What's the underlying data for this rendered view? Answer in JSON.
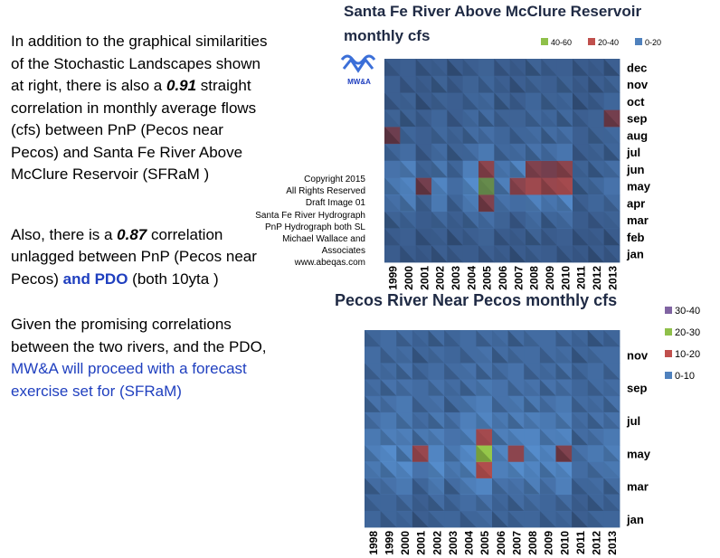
{
  "text_panel": {
    "p1": [
      "In addition to the graphical similarities of the Stochastic Landscapes shown at right, there is also a ",
      "0.91",
      " straight correlation in monthly average flows (cfs) between PnP (Pecos near Pecos) and Santa Fe River Above McClure Reservoir (SFRaM )"
    ],
    "p2": [
      "Also, there is a ",
      "0.87",
      " correlation unlagged between PnP (Pecos near Pecos) ",
      "and PDO",
      " (both 10yta )"
    ],
    "p3": [
      "Given the promising correlations between the two rivers, and the PDO, ",
      "MW&A will proceed with a forecast exercise set for (SFRaM)"
    ]
  },
  "copyright": [
    "Copyright  2015",
    "All Rights Reserved",
    "Draft Image 01",
    "Santa Fe River Hydrograph",
    "PnP Hydrograph both SL",
    "Michael Wallace and",
    "Associates",
    "www.abeqas.com"
  ],
  "logo": "MW&A",
  "chart_data": [
    {
      "type": "surface",
      "title": [
        "Santa Fe River Above McClure Reservoir",
        "monthly cfs"
      ],
      "x": [
        "1999",
        "2000",
        "2001",
        "2002",
        "2003",
        "2004",
        "2005",
        "2006",
        "2007",
        "2008",
        "2009",
        "2010",
        "2011",
        "2012",
        "2013"
      ],
      "y": [
        "jan",
        "feb",
        "mar",
        "apr",
        "may",
        "jun",
        "jul",
        "aug",
        "sep",
        "oct",
        "nov",
        "dec"
      ],
      "legend": "top-right-horizontal",
      "bands": [
        {
          "name": "40-60",
          "range": [
            40,
            60
          ],
          "color": "#8fc04a"
        },
        {
          "name": "20-40",
          "range": [
            20,
            40
          ],
          "color": "#c0504d"
        },
        {
          "name": "0-20",
          "range": [
            0,
            20
          ],
          "color": "#4f81bd"
        }
      ],
      "values": [
        [
          3,
          3,
          2,
          4,
          3,
          3,
          4,
          3,
          3,
          4,
          3,
          3,
          2,
          3,
          3
        ],
        [
          3,
          4,
          2,
          4,
          3,
          4,
          5,
          3,
          3,
          5,
          3,
          4,
          2,
          3,
          3
        ],
        [
          5,
          6,
          3,
          7,
          4,
          8,
          9,
          5,
          4,
          8,
          6,
          9,
          3,
          4,
          5
        ],
        [
          9,
          14,
          5,
          12,
          6,
          13,
          24,
          10,
          8,
          15,
          11,
          17,
          4,
          6,
          8
        ],
        [
          12,
          16,
          22,
          16,
          8,
          18,
          45,
          14,
          26,
          29,
          28,
          30,
          5,
          7,
          10
        ],
        [
          10,
          15,
          5,
          12,
          6,
          14,
          26,
          11,
          16,
          24,
          22,
          26,
          5,
          6,
          9
        ],
        [
          6,
          8,
          4,
          8,
          5,
          9,
          12,
          7,
          8,
          10,
          9,
          11,
          4,
          5,
          6
        ],
        [
          21,
          6,
          4,
          7,
          5,
          8,
          9,
          6,
          6,
          8,
          8,
          9,
          4,
          5,
          7
        ],
        [
          5,
          5,
          4,
          6,
          4,
          7,
          8,
          5,
          5,
          7,
          6,
          7,
          4,
          5,
          22
        ],
        [
          4,
          5,
          3,
          5,
          4,
          6,
          7,
          5,
          4,
          6,
          5,
          6,
          3,
          4,
          6
        ],
        [
          4,
          4,
          3,
          5,
          3,
          5,
          6,
          4,
          4,
          5,
          4,
          5,
          3,
          4,
          5
        ],
        [
          3,
          4,
          3,
          4,
          3,
          4,
          5,
          4,
          3,
          5,
          4,
          4,
          3,
          3,
          4
        ]
      ]
    },
    {
      "type": "surface",
      "title": [
        "Pecos River Near Pecos monthly cfs"
      ],
      "x": [
        "1998",
        "1999",
        "2000",
        "2001",
        "2002",
        "2003",
        "2004",
        "2005",
        "2006",
        "2007",
        "2008",
        "2009",
        "2010",
        "2011",
        "2012",
        "2013"
      ],
      "y": [
        "jan",
        null,
        "mar",
        null,
        "may",
        null,
        "jul",
        null,
        "sep",
        null,
        "nov",
        null
      ],
      "legend": "right-vertical",
      "bands": [
        {
          "name": "30-40",
          "range": [
            30,
            40
          ],
          "color": "#8064a2"
        },
        {
          "name": "20-30",
          "range": [
            20,
            30
          ],
          "color": "#8fc04a"
        },
        {
          "name": "10-20",
          "range": [
            10,
            20
          ],
          "color": "#c0504d"
        },
        {
          "name": "0-10",
          "range": [
            0,
            10
          ],
          "color": "#4f81bd"
        }
      ],
      "values": [
        [
          3,
          3,
          3,
          2,
          3,
          3,
          3,
          4,
          3,
          3,
          3,
          3,
          3,
          2,
          3,
          3
        ],
        [
          3,
          3,
          4,
          2,
          4,
          3,
          4,
          5,
          3,
          4,
          4,
          3,
          4,
          2,
          3,
          3
        ],
        [
          4,
          5,
          6,
          3,
          6,
          4,
          7,
          8,
          5,
          5,
          7,
          5,
          7,
          3,
          4,
          4
        ],
        [
          6,
          8,
          9,
          5,
          9,
          6,
          9,
          16,
          7,
          9,
          8,
          8,
          9,
          4,
          5,
          6
        ],
        [
          7,
          9,
          8,
          14,
          8,
          6,
          9,
          28,
          8,
          13,
          9,
          8,
          12,
          5,
          6,
          7
        ],
        [
          6,
          7,
          7,
          6,
          7,
          5,
          8,
          15,
          7,
          8,
          8,
          7,
          8,
          4,
          5,
          6
        ],
        [
          5,
          6,
          6,
          4,
          6,
          5,
          7,
          8,
          6,
          7,
          7,
          6,
          7,
          4,
          5,
          5
        ],
        [
          5,
          5,
          6,
          4,
          5,
          4,
          6,
          7,
          5,
          6,
          6,
          5,
          6,
          4,
          4,
          5
        ],
        [
          4,
          5,
          5,
          4,
          5,
          4,
          5,
          6,
          5,
          5,
          5,
          5,
          5,
          3,
          4,
          4
        ],
        [
          4,
          4,
          5,
          3,
          4,
          4,
          5,
          5,
          4,
          5,
          4,
          4,
          5,
          3,
          4,
          4
        ],
        [
          4,
          4,
          4,
          3,
          4,
          3,
          4,
          5,
          4,
          4,
          4,
          4,
          4,
          3,
          4,
          4
        ],
        [
          3,
          4,
          4,
          3,
          4,
          3,
          4,
          4,
          4,
          4,
          4,
          4,
          4,
          3,
          3,
          3
        ]
      ]
    }
  ]
}
